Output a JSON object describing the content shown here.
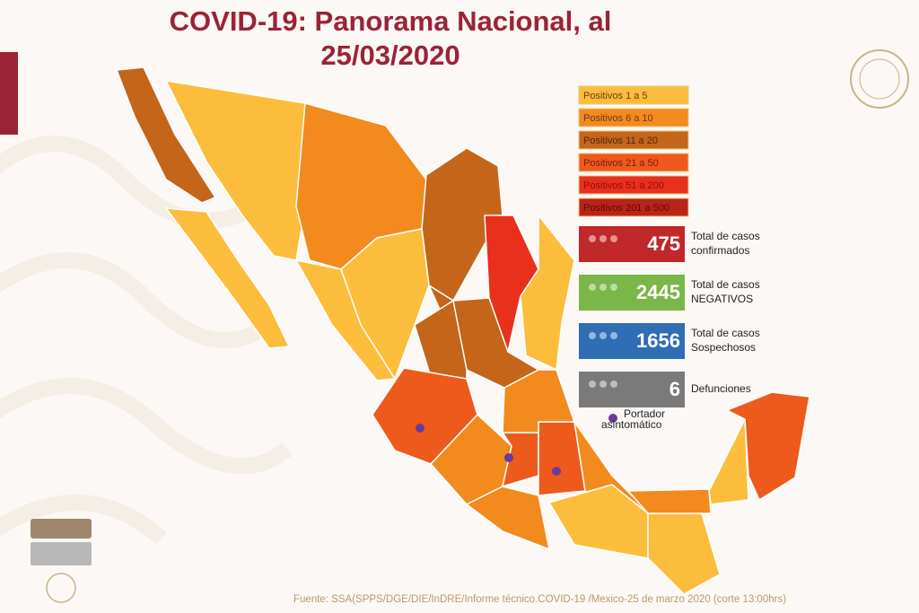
{
  "header": {
    "title_line1": "COVID-19: Panorama Nacional, al",
    "title_line2": "25/03/2020"
  },
  "legend": {
    "items": [
      {
        "label": "Positivos 1 a 5",
        "color": "#fbbd3b",
        "text_color": "#6b3a1a"
      },
      {
        "label": "Positivos 6 a 10",
        "color": "#f28a1e",
        "text_color": "#6b3a1a"
      },
      {
        "label": "Positivos 11 a 20",
        "color": "#c4651a",
        "text_color": "#4a2a10"
      },
      {
        "label": "Positivos 21 a 50",
        "color": "#ee5a1c",
        "text_color": "#7a1a10"
      },
      {
        "label": "Positivos 51 a 200",
        "color": "#e8301c",
        "text_color": "#8a1010"
      },
      {
        "label": "Positivos 201 a 500",
        "color": "#b82418",
        "text_color": "#5a0a08"
      }
    ]
  },
  "stats": [
    {
      "value": "475",
      "label": [
        "Total de casos",
        "confirmados"
      ],
      "color": "#c0282a"
    },
    {
      "value": "2445",
      "label": [
        "Total de casos",
        "NEGATIVOS"
      ],
      "color": "#7ab648"
    },
    {
      "value": "1656",
      "label": [
        "Total de casos",
        "Sospechosos"
      ],
      "color": "#2f6db5"
    },
    {
      "value": "6",
      "label": [
        "Defunciones"
      ],
      "color": "#7a7a7a"
    }
  ],
  "marker": {
    "label": [
      "Portador",
      "asintomático"
    ],
    "color": "#6b3a9a"
  },
  "footer": {
    "source": "Fuente: SSA(SPPS/DGE/DIE/InDRE/Informe técnico.COVID-19 /Mexico-25 de marzo 2020 (corte 13:00hrs)"
  }
}
